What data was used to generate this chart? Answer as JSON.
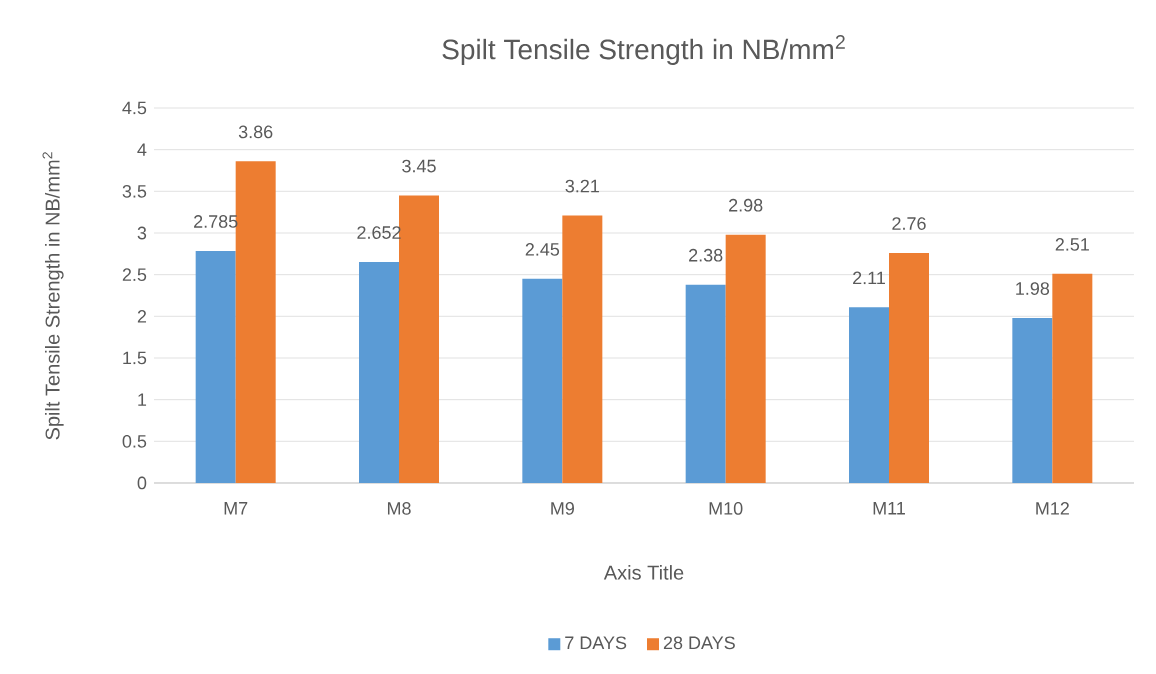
{
  "chart_data": {
    "type": "bar",
    "title": "Spilt Tensile Strength in NB/mm$^{2}$",
    "xlabel": "Axis Title",
    "ylabel": "Spilt Tensile Strength in NB/mm$^{2}$",
    "categories": [
      "M7",
      "M8",
      "M9",
      "M10",
      "M11",
      "M12"
    ],
    "series": [
      {
        "name": "7 DAYS",
        "color": "#5b9bd5",
        "values": [
          2.785,
          2.652,
          2.45,
          2.38,
          2.11,
          1.98
        ]
      },
      {
        "name": "28 DAYS",
        "color": "#ed7d31",
        "values": [
          3.86,
          3.45,
          3.21,
          2.98,
          2.76,
          2.51
        ]
      }
    ],
    "ylim": [
      0,
      4.5
    ],
    "yticks": [
      0,
      0.5,
      1,
      1.5,
      2,
      2.5,
      3,
      3.5,
      4,
      4.5
    ],
    "grid": "y",
    "legend": "bottom",
    "data_labels": true
  }
}
